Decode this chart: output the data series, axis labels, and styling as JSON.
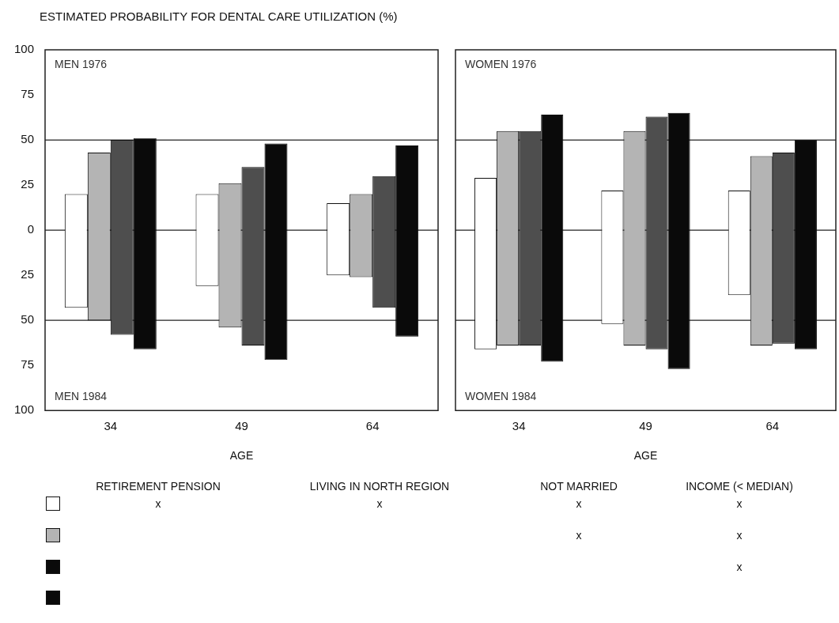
{
  "chart_data": [
    {
      "type": "bar",
      "title": "ESTIMATED PROBABILITY FOR DENTAL CARE UTILIZATION (%)",
      "categories": [
        "34",
        "49",
        "64"
      ],
      "xlabel": "AGE",
      "ylim": [
        -100,
        100
      ],
      "yticks": [
        {
          "value": -100,
          "label": "100"
        },
        {
          "value": -75,
          "label": "75"
        },
        {
          "value": -50,
          "label": "50"
        },
        {
          "value": -25,
          "label": "25"
        },
        0,
        25,
        50,
        75,
        100
      ],
      "grid": false,
      "annotations": [
        "MEN 1976",
        "MEN 1984"
      ],
      "ref_lines": [
        {
          "axis": "y",
          "value": 50
        },
        {
          "axis": "y",
          "value": 0
        },
        {
          "axis": "y",
          "value": -50
        }
      ],
      "series": [
        {
          "color": "#ffffff",
          "base": [
            -43,
            -31,
            -25
          ],
          "values": [
            63,
            51,
            40
          ]
        },
        {
          "color": "#b4b4b4",
          "base": [
            -50,
            -54,
            -26
          ],
          "values": [
            93,
            80,
            46
          ]
        },
        {
          "color": "#4e4e4e",
          "base": [
            -58,
            -64,
            -43
          ],
          "values": [
            108,
            99,
            73
          ]
        },
        {
          "color": "#0a0a0a",
          "base": [
            -66,
            -72,
            -59
          ],
          "values": [
            117,
            120,
            106
          ]
        }
      ]
    },
    {
      "type": "bar",
      "categories": [
        "34",
        "49",
        "64"
      ],
      "xlabel": "AGE",
      "ylim": [
        -100,
        100
      ],
      "tick_labels": "x",
      "grid": false,
      "annotations": [
        "WOMEN 1976",
        "WOMEN 1984"
      ],
      "ref_lines": [
        {
          "axis": "y",
          "value": 50
        },
        {
          "axis": "y",
          "value": 0
        },
        {
          "axis": "y",
          "value": -50
        }
      ],
      "series": [
        {
          "color": "#ffffff",
          "base": [
            -66,
            -52,
            -36
          ],
          "values": [
            95,
            74,
            58
          ]
        },
        {
          "color": "#b4b4b4",
          "base": [
            -64,
            -64,
            -64
          ],
          "values": [
            119,
            119,
            105
          ]
        },
        {
          "color": "#4e4e4e",
          "base": [
            -64,
            -66,
            -63
          ],
          "values": [
            119,
            129,
            106
          ]
        },
        {
          "color": "#0a0a0a",
          "base": [
            -73,
            -77,
            -66
          ],
          "values": [
            137,
            142,
            116
          ]
        }
      ]
    },
    {
      "type": "other",
      "categories": [
        "RETIREMENT PENSION",
        "LIVING IN NORTH REGION",
        "NOT MARRIED",
        "INCOME (< MEDIAN)"
      ],
      "colors": [
        "#ffffff",
        "#b4b4b4",
        "#0a0a0a",
        "#0a0a0a"
      ],
      "cell_labels": [
        [
          "x",
          "x",
          "x",
          "x"
        ],
        [
          null,
          null,
          "x",
          "x"
        ],
        [
          null,
          null,
          null,
          "x"
        ],
        [
          null,
          null,
          null,
          null
        ]
      ]
    }
  ]
}
